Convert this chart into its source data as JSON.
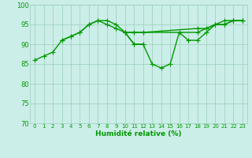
{
  "xlabel": "Humidité relative (%)",
  "xlim": [
    -0.5,
    23.5
  ],
  "ylim": [
    70,
    100
  ],
  "yticks": [
    70,
    75,
    80,
    85,
    90,
    95,
    100
  ],
  "xticks": [
    0,
    1,
    2,
    3,
    4,
    5,
    6,
    7,
    8,
    9,
    10,
    11,
    12,
    13,
    14,
    15,
    16,
    17,
    18,
    19,
    20,
    21,
    22,
    23
  ],
  "bg_color": "#cceee8",
  "grid_color": "#99ccbb",
  "line_color": "#009900",
  "lines": [
    [
      86,
      87,
      88,
      91,
      92,
      93,
      95,
      96,
      96,
      95,
      93,
      90,
      90,
      85,
      84,
      85,
      93,
      91,
      91,
      93,
      95,
      95,
      96,
      96
    ],
    [
      null,
      null,
      null,
      91,
      92,
      93,
      95,
      96,
      95,
      94,
      93,
      90,
      90,
      null,
      null,
      null,
      null,
      null,
      null,
      null,
      null,
      null,
      null,
      null
    ],
    [
      null,
      null,
      null,
      null,
      null,
      null,
      null,
      null,
      null,
      null,
      93,
      93,
      93,
      null,
      null,
      null,
      null,
      null,
      93,
      94,
      95,
      95,
      96,
      96
    ],
    [
      null,
      null,
      null,
      null,
      null,
      null,
      null,
      null,
      null,
      null,
      93,
      93,
      93,
      null,
      null,
      null,
      null,
      null,
      94,
      94,
      95,
      96,
      96,
      96
    ]
  ],
  "marker": "+",
  "marker_size": 4,
  "line_width": 1.0,
  "figsize": [
    3.2,
    2.0
  ],
  "dpi": 100
}
